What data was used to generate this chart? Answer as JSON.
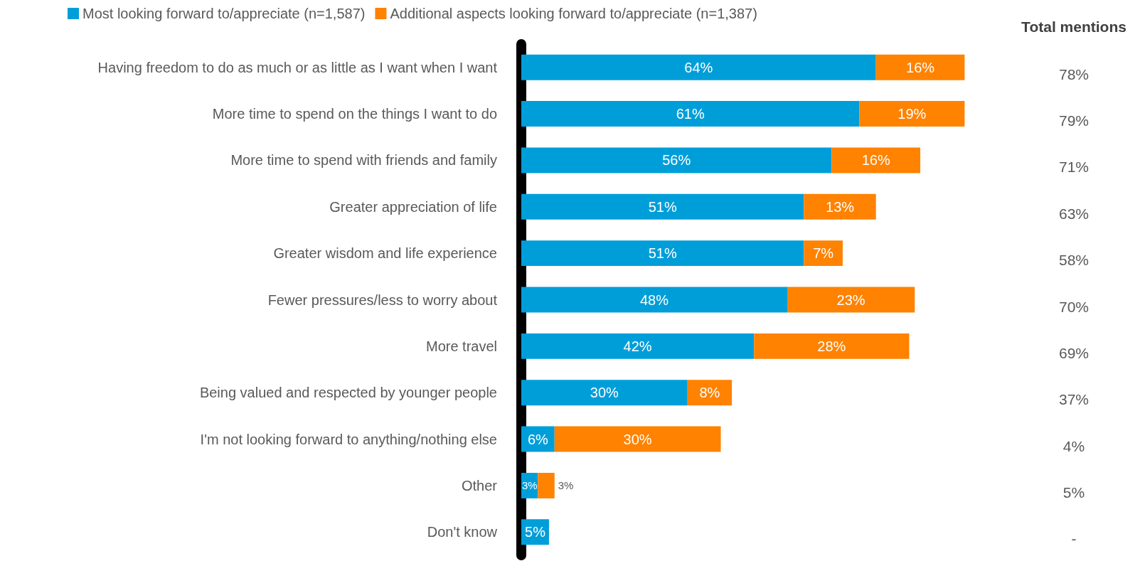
{
  "chart_data": [
    {
      "type": "bar",
      "orientation": "horizontal",
      "stacked": true,
      "legend": "top left",
      "tick_labels": "y",
      "categories": [
        "Having freedom to do as much or as little as I want when I want",
        "More time to spend on the things I want to do",
        "More time to spend with friends and family",
        "Greater appreciation of life",
        "Greater wisdom and life experience",
        "Fewer pressures/less to worry about",
        "More travel",
        "Being valued and respected by younger people",
        "I'm not looking forward to anything/nothing else",
        "Other",
        "Don't know"
      ],
      "series": [
        {
          "name": "Most looking forward to/appreciate (n=1,587)",
          "color": "#009ed9",
          "values": [
            64,
            61,
            56,
            51,
            51,
            48,
            42,
            30,
            6,
            3,
            5
          ],
          "value_labels": [
            "64%",
            "61%",
            "56%",
            "51%",
            "51%",
            "48%",
            "42%",
            "30%",
            "6%",
            "3%",
            "5%"
          ]
        },
        {
          "name": "Additional aspects looking forward to/appreciate (n=1,387)",
          "color": "#ff8200",
          "values": [
            16,
            19,
            16,
            13,
            7,
            23,
            28,
            8,
            30,
            3,
            null
          ],
          "value_labels": [
            "16%",
            "19%",
            "16%",
            "13%",
            "7%",
            "23%",
            "28%",
            "8%",
            "30%",
            "3%",
            null
          ]
        }
      ]
    },
    {
      "type": "other",
      "title": "Total mentions",
      "annotations": [
        "78%",
        "79%",
        "71%",
        "63%",
        "58%",
        "70%",
        "69%",
        "37%",
        "4%",
        "5%",
        "-"
      ]
    }
  ]
}
